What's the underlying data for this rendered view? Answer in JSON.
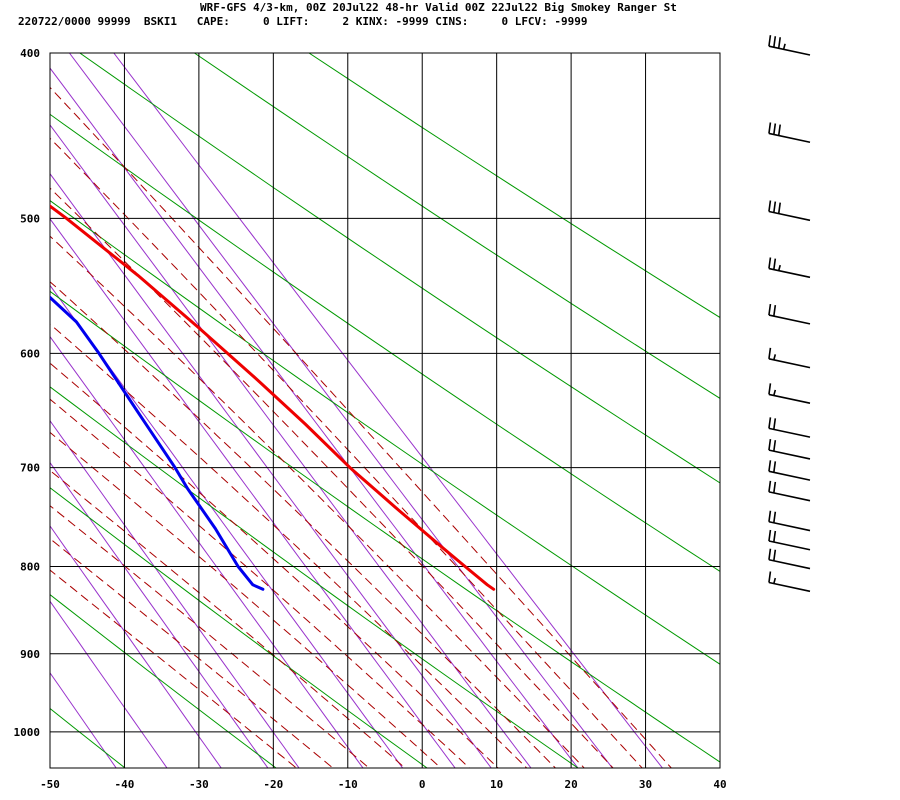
{
  "header": {
    "line1": "WRF-GFS 4/3-km, 00Z 20Jul22 48-hr Valid 00Z 22Jul22 Big Smokey Ranger St",
    "line2": "220722/0000 99999  BSKI1   CAPE:     0 LIFT:     2 KINX: -9999 CINS:     0 LFCV: -9999"
  },
  "chart_data": {
    "type": "line",
    "subtype": "skew-T log-P sounding",
    "title": "",
    "xlabel": "",
    "ylabel": "",
    "x_ticks": [
      "-50",
      "-40",
      "-30",
      "-20",
      "-10",
      "0",
      "10",
      "20",
      "30",
      "40"
    ],
    "y_ticks": [
      "400",
      "500",
      "600",
      "700",
      "800",
      "900",
      "1000"
    ],
    "xlim": [
      -50,
      40
    ],
    "ylim": [
      1050,
      400
    ],
    "y_scale": "log",
    "grid": true,
    "legend": "none",
    "colors": {
      "temperature": "#ee0000",
      "dewpoint": "#0000ee",
      "dry_adiabat": "#009900",
      "moist_adiabat": "#aa0000",
      "mixing_ratio": "#9933cc",
      "grid": "#000000",
      "wind_barb": "#000000"
    },
    "series": [
      {
        "key": "temperature",
        "pressure": [
          400,
          440,
          480,
          500,
          540,
          580,
          620,
          660,
          700,
          740,
          780,
          800,
          820,
          825
        ],
        "values": [
          -20,
          -13,
          -6.5,
          -3.5,
          1.5,
          5.5,
          9,
          12,
          14.5,
          17.5,
          20.5,
          22,
          23.5,
          24
        ]
      },
      {
        "key": "dewpoint",
        "pressure": [
          400,
          440,
          470,
          500,
          540,
          575,
          600,
          650,
          700,
          720,
          760,
          800,
          820,
          825
        ],
        "values": [
          -46,
          -35,
          -26,
          -19,
          -13.5,
          -10.5,
          -10,
          -9.5,
          -9,
          -9,
          -8.5,
          -8.5,
          -8,
          -7
        ]
      }
    ],
    "wind_barbs": [
      {
        "pressure": 400,
        "speed_kt": 35
      },
      {
        "pressure": 450,
        "speed_kt": 30
      },
      {
        "pressure": 500,
        "speed_kt": 30
      },
      {
        "pressure": 540,
        "speed_kt": 25
      },
      {
        "pressure": 575,
        "speed_kt": 20
      },
      {
        "pressure": 610,
        "speed_kt": 15
      },
      {
        "pressure": 640,
        "speed_kt": 15
      },
      {
        "pressure": 670,
        "speed_kt": 20
      },
      {
        "pressure": 690,
        "speed_kt": 20
      },
      {
        "pressure": 710,
        "speed_kt": 20
      },
      {
        "pressure": 730,
        "speed_kt": 20
      },
      {
        "pressure": 760,
        "speed_kt": 20
      },
      {
        "pressure": 780,
        "speed_kt": 20
      },
      {
        "pressure": 800,
        "speed_kt": 20
      },
      {
        "pressure": 825,
        "speed_kt": 15
      }
    ],
    "dry_adiabats_theta_K": [
      230,
      250,
      270,
      290,
      310,
      330,
      350,
      370,
      390,
      410
    ],
    "moist_adiabats_theta_w_C": [
      -20,
      -15,
      -10,
      -5,
      0,
      4,
      8,
      12,
      16,
      20,
      24,
      28,
      32
    ],
    "mixing_ratio_lines_gkg": [
      0.1,
      0.2,
      0.4,
      0.7,
      1,
      2,
      3,
      5,
      7,
      10,
      15,
      20,
      30
    ]
  }
}
